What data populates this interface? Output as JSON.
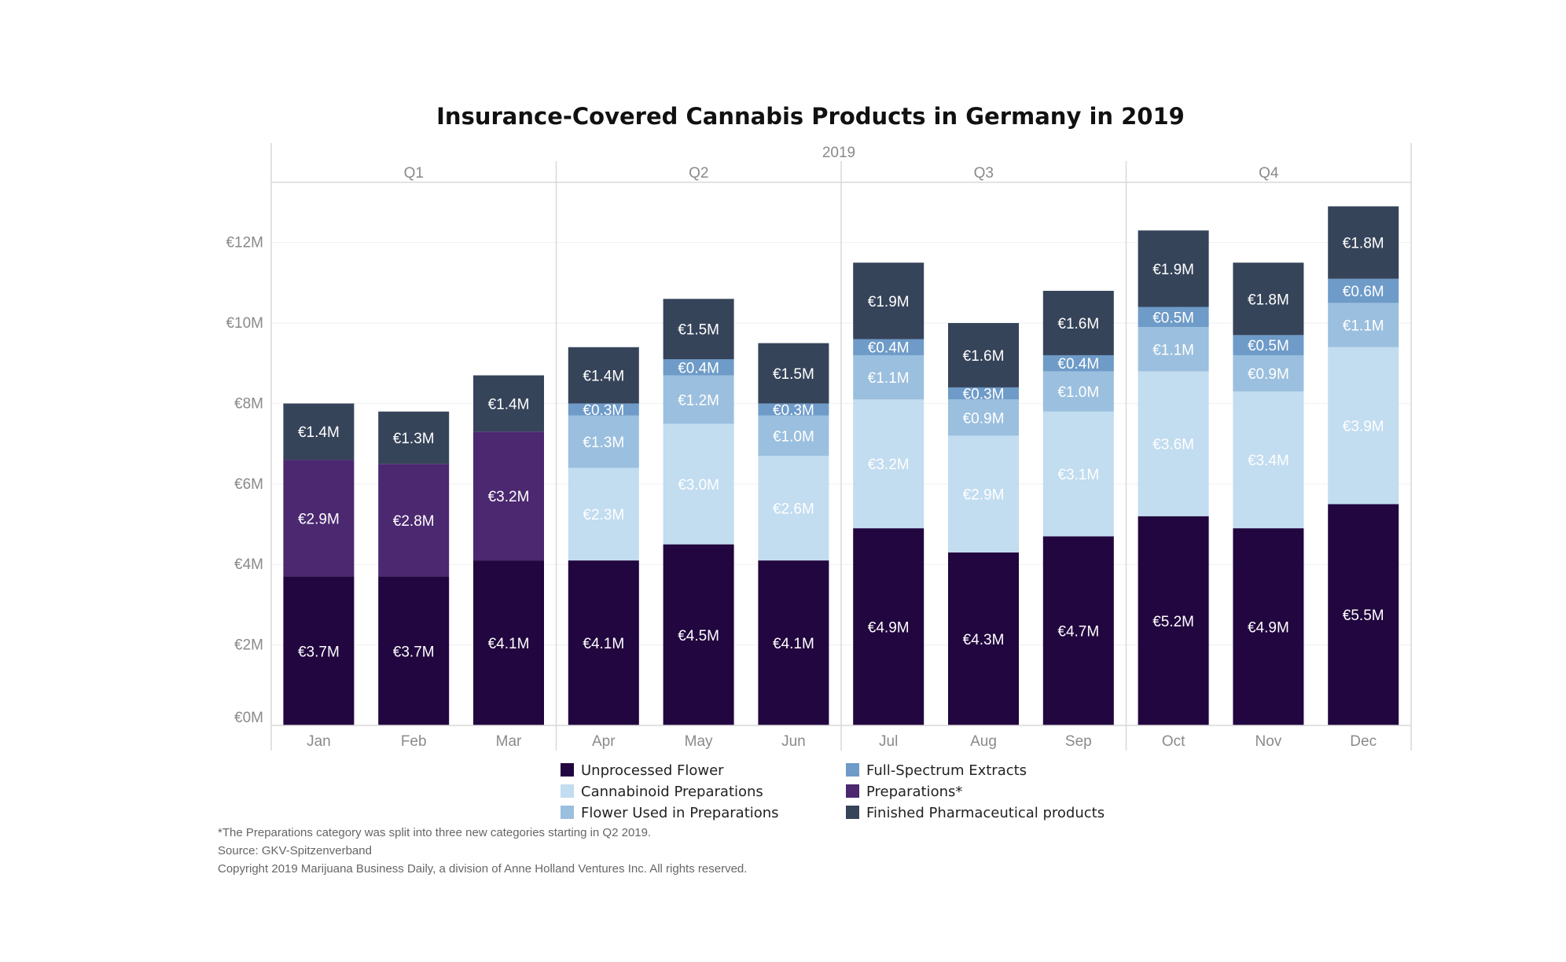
{
  "chart_data": {
    "type": "bar",
    "stacked": true,
    "title": "Insurance-Covered Cannabis Products in Germany in 2019",
    "year_label": "2019",
    "quarters": [
      {
        "label": "Q1",
        "months": [
          "Jan",
          "Feb",
          "Mar"
        ]
      },
      {
        "label": "Q2",
        "months": [
          "Apr",
          "May",
          "Jun"
        ]
      },
      {
        "label": "Q3",
        "months": [
          "Jul",
          "Aug",
          "Sep"
        ]
      },
      {
        "label": "Q4",
        "months": [
          "Oct",
          "Nov",
          "Dec"
        ]
      }
    ],
    "categories": [
      "Jan",
      "Feb",
      "Mar",
      "Apr",
      "May",
      "Jun",
      "Jul",
      "Aug",
      "Sep",
      "Oct",
      "Nov",
      "Dec"
    ],
    "y_ticks": [
      "€0M",
      "€2M",
      "€4M",
      "€6M",
      "€8M",
      "€10M",
      "€12M"
    ],
    "ylim": [
      0,
      13.5
    ],
    "grid": true,
    "legend_position": "bottom",
    "series": [
      {
        "name": "Unprocessed Flower",
        "color": "#22063f",
        "values": [
          3.7,
          3.7,
          4.1,
          4.1,
          4.5,
          4.1,
          4.9,
          4.3,
          4.7,
          5.2,
          4.9,
          5.5
        ],
        "labels": [
          "€3.7M",
          "€3.7M",
          "€4.1M",
          "€4.1M",
          "€4.5M",
          "€4.1M",
          "€4.9M",
          "€4.3M",
          "€4.7M",
          "€5.2M",
          "€4.9M",
          "€5.5M"
        ]
      },
      {
        "name": "Preparations*",
        "color": "#4b2870",
        "values": [
          2.9,
          2.8,
          3.2,
          null,
          null,
          null,
          null,
          null,
          null,
          null,
          null,
          null
        ],
        "labels": [
          "€2.9M",
          "€2.8M",
          "€3.2M",
          null,
          null,
          null,
          null,
          null,
          null,
          null,
          null,
          null
        ]
      },
      {
        "name": "Cannabinoid Preparations",
        "color": "#c2dcf0",
        "values": [
          null,
          null,
          null,
          2.3,
          3.0,
          2.6,
          3.2,
          2.9,
          3.1,
          3.6,
          3.4,
          3.9
        ],
        "labels": [
          null,
          null,
          null,
          "€2.3M",
          "€3.0M",
          "€2.6M",
          "€3.2M",
          "€2.9M",
          "€3.1M",
          "€3.6M",
          "€3.4M",
          "€3.9M"
        ]
      },
      {
        "name": "Flower Used in Preparations",
        "color": "#9bbfde",
        "values": [
          null,
          null,
          null,
          1.3,
          1.2,
          1.0,
          1.1,
          0.9,
          1.0,
          1.1,
          0.9,
          1.1
        ],
        "labels": [
          null,
          null,
          null,
          "€1.3M",
          "€1.2M",
          "€1.0M",
          "€1.1M",
          "€0.9M",
          "€1.0M",
          "€1.1M",
          "€0.9M",
          "€1.1M"
        ]
      },
      {
        "name": "Full-Spectrum Extracts",
        "color": "#6e9bc8",
        "values": [
          null,
          null,
          null,
          0.3,
          0.4,
          0.3,
          0.4,
          0.3,
          0.4,
          0.5,
          0.5,
          0.6
        ],
        "labels": [
          null,
          null,
          null,
          "€0.3M",
          "€0.4M",
          "€0.3M",
          "€0.4M",
          "€0.3M",
          "€0.4M",
          "€0.5M",
          "€0.5M",
          "€0.6M"
        ]
      },
      {
        "name": "Finished Pharmaceutical products",
        "color": "#36445a",
        "values": [
          1.4,
          1.3,
          1.4,
          1.4,
          1.5,
          1.5,
          1.9,
          1.6,
          1.6,
          1.9,
          1.8,
          1.8
        ],
        "labels": [
          "€1.4M",
          "€1.3M",
          "€1.4M",
          "€1.4M",
          "€1.5M",
          "€1.5M",
          "€1.9M",
          "€1.6M",
          "€1.6M",
          "€1.9M",
          "€1.8M",
          "€1.8M"
        ]
      }
    ],
    "legend": {
      "columns": [
        [
          "Unprocessed Flower",
          "Cannabinoid Preparations",
          "Flower Used in Preparations"
        ],
        [
          "Full-Spectrum Extracts",
          "Preparations*",
          "Finished Pharmaceutical products"
        ]
      ]
    },
    "notes": [
      "*The Preparations category was split into three new categories starting in Q2 2019.",
      "Source: GKV-Spitzenverband",
      "Copyright 2019 Marijuana Business Daily, a division of Anne Holland Ventures Inc. All rights reserved."
    ]
  }
}
